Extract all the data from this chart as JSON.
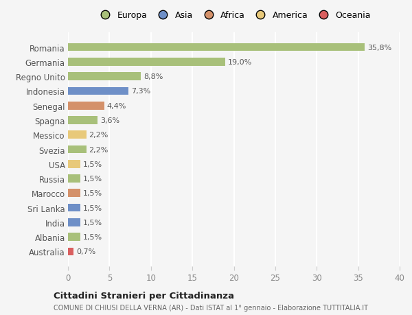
{
  "countries": [
    "Romania",
    "Germania",
    "Regno Unito",
    "Indonesia",
    "Senegal",
    "Spagna",
    "Messico",
    "Svezia",
    "USA",
    "Russia",
    "Marocco",
    "Sri Lanka",
    "India",
    "Albania",
    "Australia"
  ],
  "values": [
    35.8,
    19.0,
    8.8,
    7.3,
    4.4,
    3.6,
    2.2,
    2.2,
    1.5,
    1.5,
    1.5,
    1.5,
    1.5,
    1.5,
    0.7
  ],
  "labels": [
    "35,8%",
    "19,0%",
    "8,8%",
    "7,3%",
    "4,4%",
    "3,6%",
    "2,2%",
    "2,2%",
    "1,5%",
    "1,5%",
    "1,5%",
    "1,5%",
    "1,5%",
    "1,5%",
    "0,7%"
  ],
  "bar_colors": [
    "#a8c07a",
    "#a8c07a",
    "#a8c07a",
    "#6e8fc7",
    "#d4916a",
    "#a8c07a",
    "#e8c97a",
    "#a8c07a",
    "#e8c97a",
    "#a8c07a",
    "#d4916a",
    "#6e8fc7",
    "#6e8fc7",
    "#a8c07a",
    "#d95f5f"
  ],
  "continent_colors": {
    "Europa": "#a8c07a",
    "Asia": "#6e8fc7",
    "Africa": "#d4916a",
    "America": "#e8c97a",
    "Oceania": "#d95f5f"
  },
  "legend_order": [
    "Europa",
    "Asia",
    "Africa",
    "America",
    "Oceania"
  ],
  "xlim": [
    0,
    40
  ],
  "xticks": [
    0,
    5,
    10,
    15,
    20,
    25,
    30,
    35,
    40
  ],
  "title": "Cittadini Stranieri per Cittadinanza",
  "subtitle": "COMUNE DI CHIUSI DELLA VERNA (AR) - Dati ISTAT al 1° gennaio - Elaborazione TUTTITALIA.IT",
  "background_color": "#f5f5f5",
  "grid_color": "#ffffff",
  "bar_height": 0.55,
  "label_fontsize": 8,
  "ytick_fontsize": 8.5,
  "xtick_fontsize": 8.5
}
